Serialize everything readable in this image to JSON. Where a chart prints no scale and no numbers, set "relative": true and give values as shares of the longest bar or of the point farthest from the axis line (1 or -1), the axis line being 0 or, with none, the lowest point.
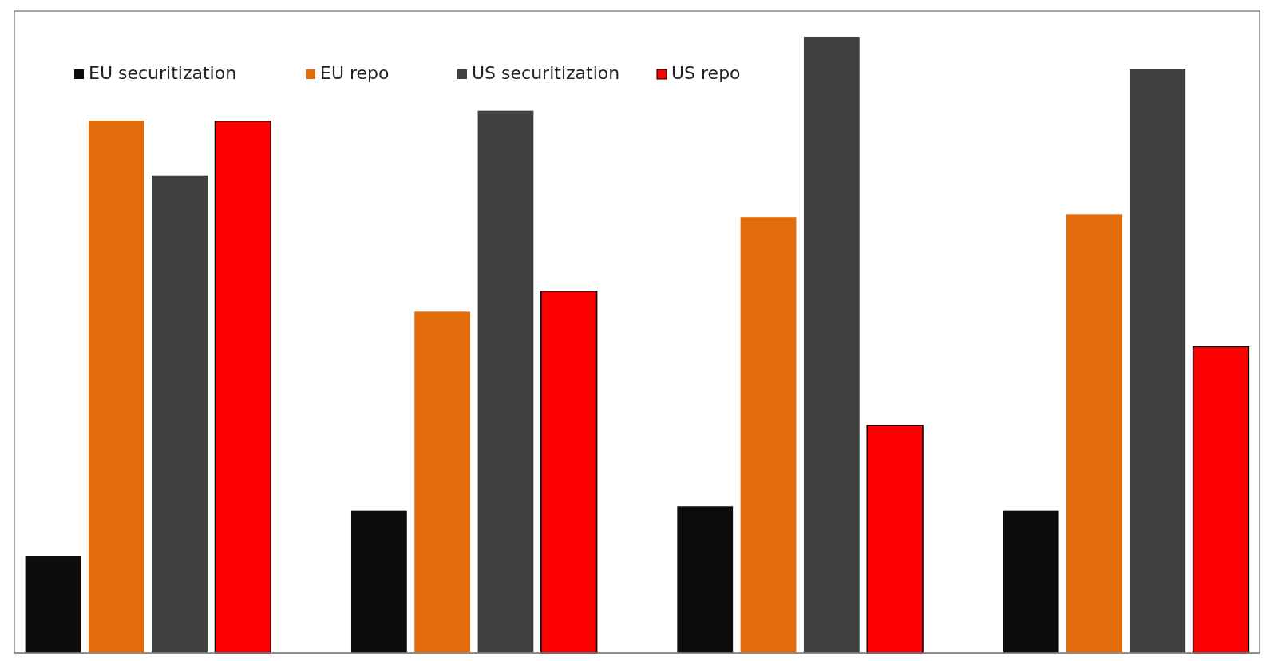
{
  "chart_data": {
    "type": "bar",
    "relative": true,
    "categories": [
      null,
      null,
      null,
      null
    ],
    "legend": "top left",
    "series": [
      {
        "name": "EU securitization",
        "color": "#0d0d0d",
        "values": [
          0.158,
          0.231,
          0.238,
          0.231
        ]
      },
      {
        "name": "EU repo",
        "color": "#e36c0a",
        "values": [
          0.864,
          0.554,
          0.707,
          0.712
        ]
      },
      {
        "name": "US securitization",
        "color": "#404040",
        "values": [
          0.775,
          0.88,
          1,
          0.948
        ]
      },
      {
        "name": "US repo",
        "color": "#ff0000",
        "values": [
          0.863,
          0.587,
          0.369,
          0.497
        ]
      }
    ]
  }
}
